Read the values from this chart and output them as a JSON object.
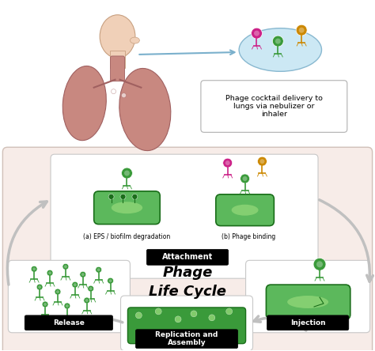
{
  "bg_color": "#ffffff",
  "lower_panel_color": "#f7ece8",
  "green_dark": "#1a6e1a",
  "green_mid": "#3a9a3a",
  "green_light": "#5cb85c",
  "green_inner": "#a0e080",
  "phage_cocktail_label": "Phage cocktail delivery to\nlungs via nebulizer or\ninhaler",
  "attachment_label": "Attachment",
  "release_label": "Release",
  "injection_label": "Injection",
  "replication_label": "Replication and\nAssembly",
  "life_cycle_label": "Phage\nLife Cycle",
  "eps_label": "(a) EPS / biofilm degradation",
  "phage_binding_label": "(b) Phage binding",
  "lung_color": "#c88880",
  "lung_edge": "#a06060",
  "skin_color": "#f0d0b8",
  "skin_edge": "#c8a080",
  "blue_ellipse": "#cce8f4",
  "blue_ellipse_edge": "#88b8d0",
  "arrow_color": "#c0c0c0",
  "box_edge": "#c8c8c8",
  "white": "#ffffff",
  "black": "#000000",
  "magenta": "#cc2288",
  "gold": "#cc8800",
  "gray_line": "#d0c0b8"
}
